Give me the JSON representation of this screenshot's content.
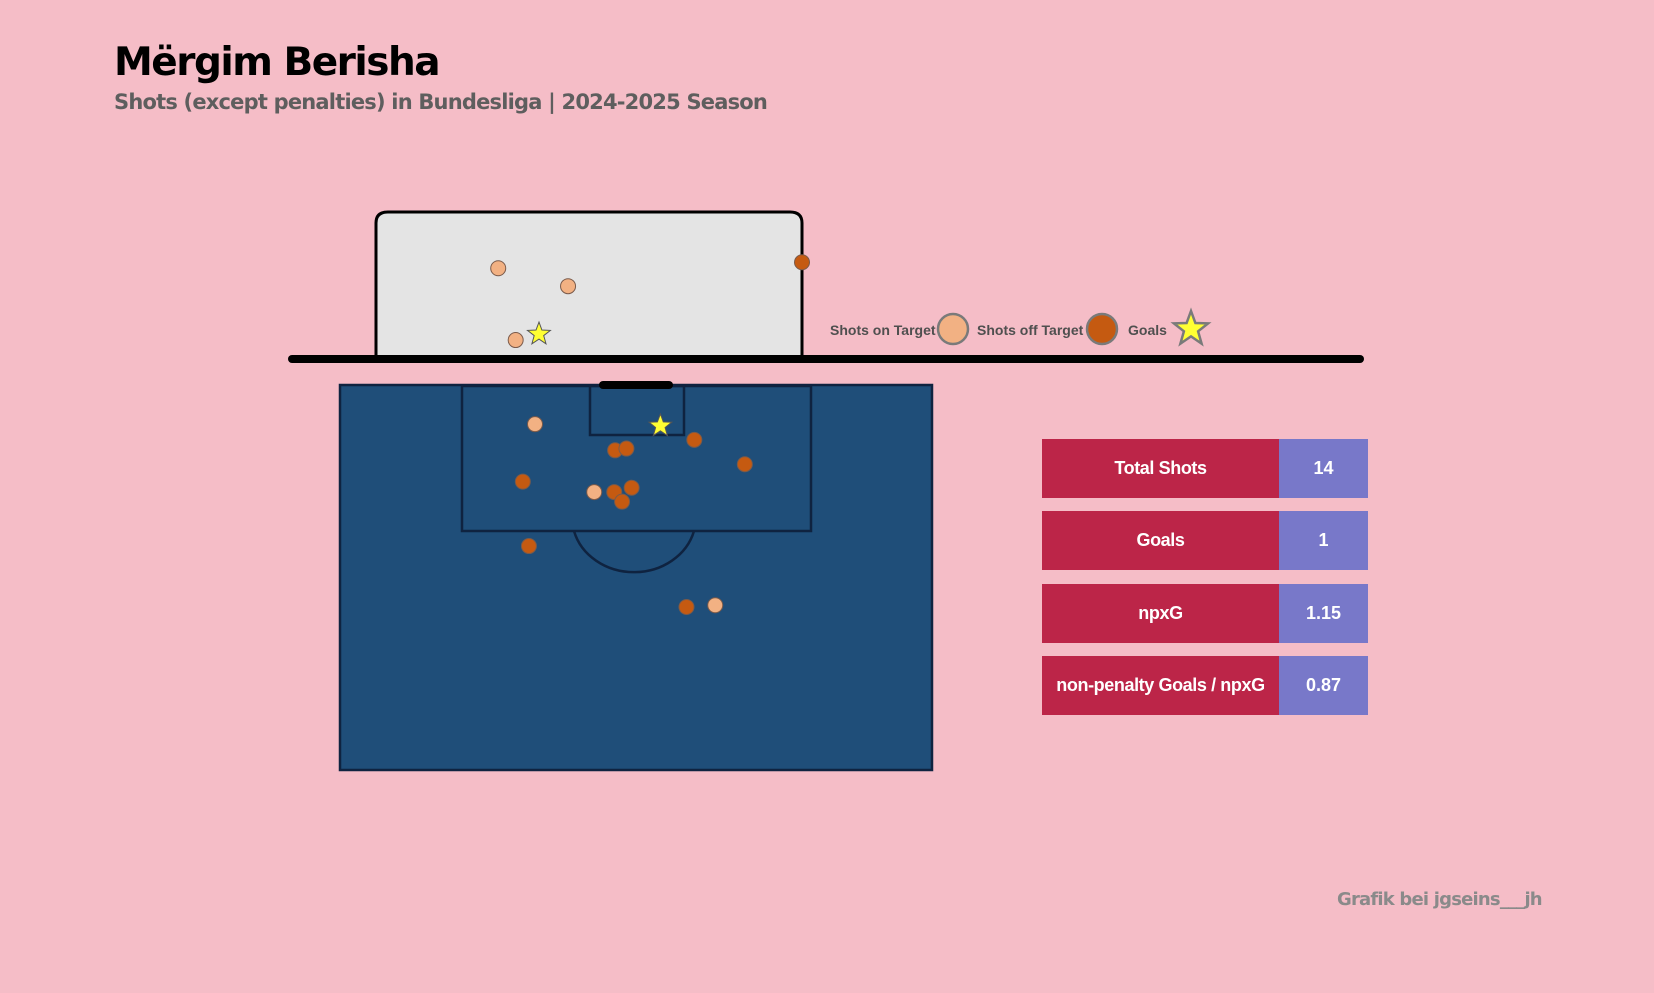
{
  "title": "Mërgim Berisha",
  "subtitle": "Shots (except penalties) in Bundesliga | 2024-2025 Season",
  "credit": "Grafik bei jgseins___jh",
  "colors": {
    "background": "#f5bdc7",
    "pitch": "#1f4e79",
    "shot_on_target": "#f2b183",
    "shot_off_target": "#c55a11",
    "goal": "#ffff33",
    "stat_label_bg": "#bc2548",
    "stat_value_bg": "#7878c9"
  },
  "legend": {
    "on_target": "Shots on Target",
    "off_target": "Shots off Target",
    "goals": "Goals"
  },
  "stats": [
    {
      "label": "Total Shots",
      "value": "14"
    },
    {
      "label": "Goals",
      "value": "1"
    },
    {
      "label": "npxG",
      "value": "1.15"
    },
    {
      "label": "non-penalty Goals / npxG",
      "value": "0.87"
    }
  ],
  "chart_data": {
    "type": "scatter",
    "title": "Mërgim Berisha",
    "subtitle": "Shots (except penalties) in Bundesliga | 2024-2025 Season",
    "pitch_units": "metres: x across pitch from left touchline (0-68), y distance from goal line",
    "shots": [
      {
        "x": 22.4,
        "y": 4.5,
        "outcome": "on_target"
      },
      {
        "x": 36.8,
        "y": 4.7,
        "outcome": "goal"
      },
      {
        "x": 40.7,
        "y": 6.3,
        "outcome": "off_target"
      },
      {
        "x": 31.6,
        "y": 7.5,
        "outcome": "off_target"
      },
      {
        "x": 32.9,
        "y": 7.3,
        "outcome": "off_target"
      },
      {
        "x": 46.5,
        "y": 9.1,
        "outcome": "off_target"
      },
      {
        "x": 21.0,
        "y": 11.1,
        "outcome": "off_target"
      },
      {
        "x": 29.2,
        "y": 12.3,
        "outcome": "on_target"
      },
      {
        "x": 31.5,
        "y": 12.3,
        "outcome": "off_target"
      },
      {
        "x": 33.5,
        "y": 11.8,
        "outcome": "off_target"
      },
      {
        "x": 32.4,
        "y": 13.4,
        "outcome": "off_target"
      },
      {
        "x": 21.7,
        "y": 18.5,
        "outcome": "off_target"
      },
      {
        "x": 39.8,
        "y": 25.5,
        "outcome": "off_target"
      },
      {
        "x": 43.1,
        "y": 25.3,
        "outcome": "on_target"
      }
    ],
    "goal_mouth_units": "metres: x from left post (0-7.32), y height (0-2.44)",
    "goal_mouth_shots": [
      {
        "x": 2.1,
        "y": 1.5,
        "outcome": "on_target"
      },
      {
        "x": 3.3,
        "y": 1.2,
        "outcome": "on_target"
      },
      {
        "x": 2.4,
        "y": 0.3,
        "outcome": "on_target"
      },
      {
        "x": 2.8,
        "y": 0.4,
        "outcome": "goal"
      },
      {
        "x": 7.32,
        "y": 1.6,
        "outcome": "off_target"
      }
    ]
  }
}
